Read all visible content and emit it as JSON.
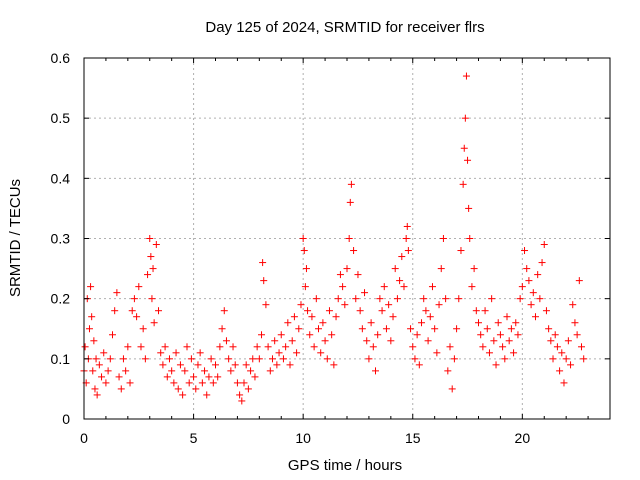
{
  "chart_data": {
    "type": "scatter",
    "title": "Day 125 of 2024, SRMTID for receiver flrs",
    "xlabel": "GPS time / hours",
    "ylabel": "SRMTID / TECUs",
    "xlim": [
      0,
      24
    ],
    "ylim": [
      0,
      0.6
    ],
    "xticks": [
      0,
      5,
      10,
      15,
      20
    ],
    "xtick_labels": [
      "0",
      "5",
      "10",
      "15",
      "20"
    ],
    "yticks": [
      0,
      0.1,
      0.2,
      0.3,
      0.4,
      0.5,
      0.6
    ],
    "ytick_labels": [
      "0",
      "0.1",
      "0.2",
      "0.3",
      "0.4",
      "0.5",
      "0.6"
    ],
    "grid": true,
    "marker": "+",
    "marker_color": "#ff0000",
    "series": [
      {
        "name": "flrs",
        "points": [
          [
            0.0,
            0.08
          ],
          [
            0.05,
            0.12
          ],
          [
            0.1,
            0.06
          ],
          [
            0.15,
            0.2
          ],
          [
            0.2,
            0.1
          ],
          [
            0.25,
            0.15
          ],
          [
            0.3,
            0.22
          ],
          [
            0.35,
            0.17
          ],
          [
            0.4,
            0.08
          ],
          [
            0.45,
            0.13
          ],
          [
            0.5,
            0.05
          ],
          [
            0.55,
            0.1
          ],
          [
            0.6,
            0.04
          ],
          [
            0.7,
            0.09
          ],
          [
            0.8,
            0.07
          ],
          [
            0.9,
            0.11
          ],
          [
            1.0,
            0.06
          ],
          [
            1.1,
            0.08
          ],
          [
            1.2,
            0.1
          ],
          [
            1.3,
            0.14
          ],
          [
            1.4,
            0.18
          ],
          [
            1.5,
            0.21
          ],
          [
            1.6,
            0.07
          ],
          [
            1.7,
            0.05
          ],
          [
            1.8,
            0.1
          ],
          [
            1.9,
            0.08
          ],
          [
            2.0,
            0.12
          ],
          [
            2.1,
            0.06
          ],
          [
            2.2,
            0.18
          ],
          [
            2.3,
            0.2
          ],
          [
            2.4,
            0.17
          ],
          [
            2.5,
            0.22
          ],
          [
            2.6,
            0.12
          ],
          [
            2.7,
            0.15
          ],
          [
            2.8,
            0.1
          ],
          [
            2.9,
            0.24
          ],
          [
            3.0,
            0.3
          ],
          [
            3.05,
            0.27
          ],
          [
            3.1,
            0.2
          ],
          [
            3.15,
            0.25
          ],
          [
            3.2,
            0.16
          ],
          [
            3.3,
            0.29
          ],
          [
            3.4,
            0.18
          ],
          [
            3.5,
            0.11
          ],
          [
            3.6,
            0.09
          ],
          [
            3.7,
            0.12
          ],
          [
            3.8,
            0.07
          ],
          [
            3.9,
            0.1
          ],
          [
            4.0,
            0.08
          ],
          [
            4.1,
            0.06
          ],
          [
            4.2,
            0.11
          ],
          [
            4.3,
            0.05
          ],
          [
            4.4,
            0.09
          ],
          [
            4.5,
            0.04
          ],
          [
            4.6,
            0.08
          ],
          [
            4.7,
            0.12
          ],
          [
            4.8,
            0.06
          ],
          [
            4.9,
            0.1
          ],
          [
            5.0,
            0.07
          ],
          [
            5.1,
            0.05
          ],
          [
            5.2,
            0.09
          ],
          [
            5.3,
            0.11
          ],
          [
            5.4,
            0.06
          ],
          [
            5.5,
            0.08
          ],
          [
            5.6,
            0.04
          ],
          [
            5.7,
            0.07
          ],
          [
            5.8,
            0.1
          ],
          [
            5.9,
            0.06
          ],
          [
            6.0,
            0.09
          ],
          [
            6.1,
            0.07
          ],
          [
            6.2,
            0.12
          ],
          [
            6.3,
            0.15
          ],
          [
            6.4,
            0.18
          ],
          [
            6.5,
            0.13
          ],
          [
            6.6,
            0.1
          ],
          [
            6.7,
            0.08
          ],
          [
            6.8,
            0.12
          ],
          [
            6.9,
            0.09
          ],
          [
            7.0,
            0.06
          ],
          [
            7.1,
            0.04
          ],
          [
            7.2,
            0.03
          ],
          [
            7.3,
            0.06
          ],
          [
            7.4,
            0.09
          ],
          [
            7.5,
            0.05
          ],
          [
            7.6,
            0.08
          ],
          [
            7.7,
            0.1
          ],
          [
            7.8,
            0.07
          ],
          [
            7.9,
            0.12
          ],
          [
            8.0,
            0.1
          ],
          [
            8.1,
            0.14
          ],
          [
            8.15,
            0.26
          ],
          [
            8.2,
            0.23
          ],
          [
            8.3,
            0.19
          ],
          [
            8.4,
            0.12
          ],
          [
            8.5,
            0.08
          ],
          [
            8.6,
            0.1
          ],
          [
            8.7,
            0.13
          ],
          [
            8.8,
            0.09
          ],
          [
            8.9,
            0.11
          ],
          [
            9.0,
            0.14
          ],
          [
            9.1,
            0.1
          ],
          [
            9.2,
            0.12
          ],
          [
            9.3,
            0.16
          ],
          [
            9.4,
            0.09
          ],
          [
            9.5,
            0.13
          ],
          [
            9.6,
            0.17
          ],
          [
            9.7,
            0.11
          ],
          [
            9.8,
            0.15
          ],
          [
            9.9,
            0.19
          ],
          [
            10.0,
            0.3
          ],
          [
            10.05,
            0.28
          ],
          [
            10.1,
            0.22
          ],
          [
            10.15,
            0.25
          ],
          [
            10.2,
            0.18
          ],
          [
            10.3,
            0.14
          ],
          [
            10.4,
            0.17
          ],
          [
            10.5,
            0.12
          ],
          [
            10.6,
            0.2
          ],
          [
            10.7,
            0.15
          ],
          [
            10.8,
            0.11
          ],
          [
            10.9,
            0.16
          ],
          [
            11.0,
            0.13
          ],
          [
            11.1,
            0.1
          ],
          [
            11.2,
            0.18
          ],
          [
            11.3,
            0.14
          ],
          [
            11.4,
            0.09
          ],
          [
            11.5,
            0.17
          ],
          [
            11.6,
            0.2
          ],
          [
            11.7,
            0.24
          ],
          [
            11.8,
            0.22
          ],
          [
            11.9,
            0.19
          ],
          [
            12.0,
            0.25
          ],
          [
            12.1,
            0.3
          ],
          [
            12.15,
            0.36
          ],
          [
            12.2,
            0.39
          ],
          [
            12.3,
            0.28
          ],
          [
            12.4,
            0.2
          ],
          [
            12.5,
            0.24
          ],
          [
            12.6,
            0.18
          ],
          [
            12.7,
            0.15
          ],
          [
            12.8,
            0.21
          ],
          [
            12.9,
            0.13
          ],
          [
            13.0,
            0.1
          ],
          [
            13.1,
            0.16
          ],
          [
            13.2,
            0.12
          ],
          [
            13.3,
            0.08
          ],
          [
            13.4,
            0.14
          ],
          [
            13.5,
            0.2
          ],
          [
            13.6,
            0.18
          ],
          [
            13.7,
            0.22
          ],
          [
            13.8,
            0.15
          ],
          [
            13.9,
            0.19
          ],
          [
            14.0,
            0.13
          ],
          [
            14.1,
            0.17
          ],
          [
            14.2,
            0.25
          ],
          [
            14.3,
            0.2
          ],
          [
            14.4,
            0.23
          ],
          [
            14.5,
            0.27
          ],
          [
            14.6,
            0.22
          ],
          [
            14.7,
            0.3
          ],
          [
            14.75,
            0.32
          ],
          [
            14.8,
            0.28
          ],
          [
            14.9,
            0.15
          ],
          [
            15.0,
            0.12
          ],
          [
            15.1,
            0.1
          ],
          [
            15.2,
            0.14
          ],
          [
            15.3,
            0.09
          ],
          [
            15.4,
            0.16
          ],
          [
            15.5,
            0.2
          ],
          [
            15.6,
            0.18
          ],
          [
            15.7,
            0.13
          ],
          [
            15.8,
            0.17
          ],
          [
            15.9,
            0.22
          ],
          [
            16.0,
            0.15
          ],
          [
            16.1,
            0.11
          ],
          [
            16.2,
            0.19
          ],
          [
            16.3,
            0.25
          ],
          [
            16.4,
            0.3
          ],
          [
            16.5,
            0.2
          ],
          [
            16.6,
            0.08
          ],
          [
            16.7,
            0.12
          ],
          [
            16.8,
            0.05
          ],
          [
            16.9,
            0.1
          ],
          [
            17.0,
            0.15
          ],
          [
            17.1,
            0.2
          ],
          [
            17.2,
            0.28
          ],
          [
            17.3,
            0.39
          ],
          [
            17.35,
            0.45
          ],
          [
            17.4,
            0.5
          ],
          [
            17.45,
            0.57
          ],
          [
            17.5,
            0.43
          ],
          [
            17.55,
            0.35
          ],
          [
            17.6,
            0.3
          ],
          [
            17.7,
            0.22
          ],
          [
            17.8,
            0.25
          ],
          [
            17.9,
            0.18
          ],
          [
            18.0,
            0.16
          ],
          [
            18.1,
            0.14
          ],
          [
            18.2,
            0.12
          ],
          [
            18.3,
            0.18
          ],
          [
            18.4,
            0.15
          ],
          [
            18.5,
            0.11
          ],
          [
            18.6,
            0.2
          ],
          [
            18.7,
            0.13
          ],
          [
            18.8,
            0.09
          ],
          [
            18.9,
            0.16
          ],
          [
            19.0,
            0.14
          ],
          [
            19.1,
            0.12
          ],
          [
            19.2,
            0.1
          ],
          [
            19.3,
            0.17
          ],
          [
            19.4,
            0.13
          ],
          [
            19.5,
            0.15
          ],
          [
            19.6,
            0.11
          ],
          [
            19.7,
            0.16
          ],
          [
            19.8,
            0.14
          ],
          [
            19.9,
            0.2
          ],
          [
            20.0,
            0.22
          ],
          [
            20.1,
            0.28
          ],
          [
            20.2,
            0.25
          ],
          [
            20.3,
            0.23
          ],
          [
            20.4,
            0.19
          ],
          [
            20.5,
            0.21
          ],
          [
            20.6,
            0.17
          ],
          [
            20.7,
            0.24
          ],
          [
            20.8,
            0.2
          ],
          [
            20.9,
            0.26
          ],
          [
            21.0,
            0.29
          ],
          [
            21.1,
            0.18
          ],
          [
            21.2,
            0.15
          ],
          [
            21.3,
            0.13
          ],
          [
            21.4,
            0.1
          ],
          [
            21.5,
            0.14
          ],
          [
            21.6,
            0.12
          ],
          [
            21.7,
            0.08
          ],
          [
            21.8,
            0.11
          ],
          [
            21.9,
            0.06
          ],
          [
            22.0,
            0.1
          ],
          [
            22.1,
            0.13
          ],
          [
            22.2,
            0.09
          ],
          [
            22.3,
            0.19
          ],
          [
            22.4,
            0.16
          ],
          [
            22.5,
            0.14
          ],
          [
            22.6,
            0.23
          ],
          [
            22.7,
            0.12
          ],
          [
            22.8,
            0.1
          ]
        ]
      }
    ]
  }
}
